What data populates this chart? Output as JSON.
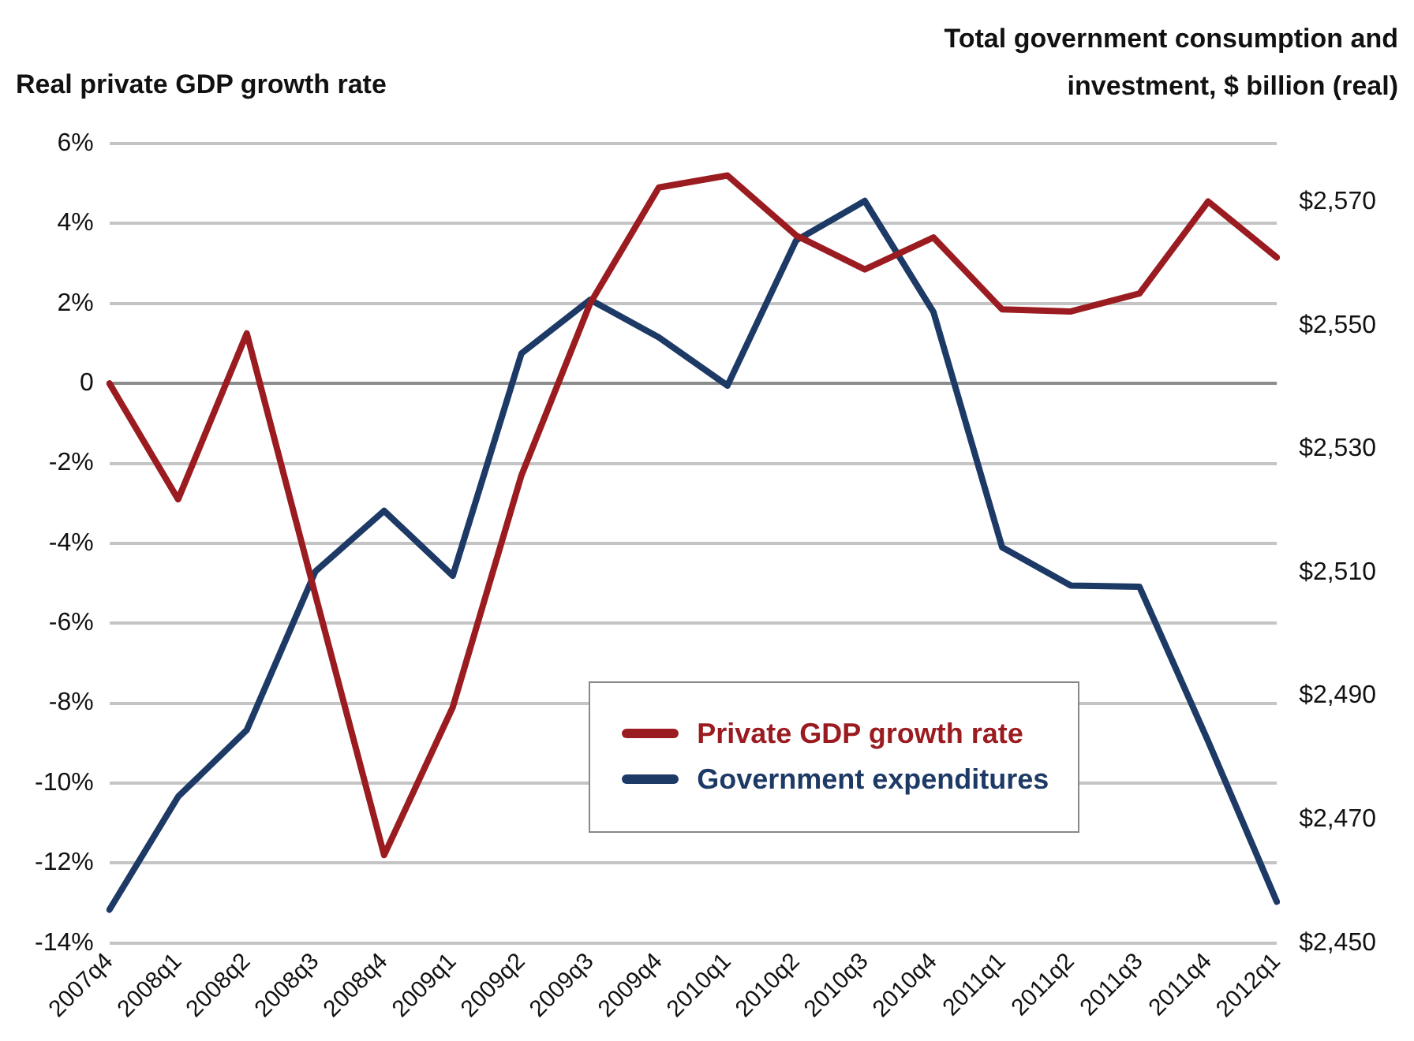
{
  "chart_data": {
    "type": "line",
    "ylabel": "Real private GDP growth rate",
    "y2label": "Total government consumption and investment, $ billion (real)",
    "categories": [
      "2007q4",
      "2008q1",
      "2008q2",
      "2008q3",
      "2008q4",
      "2009q1",
      "2009q2",
      "2009q3",
      "2009q4",
      "2010q1",
      "2010q2",
      "2010q3",
      "2010q4",
      "2011q1",
      "2011q2",
      "2011q3",
      "2011q4",
      "2012q1"
    ],
    "series": [
      {
        "name": "Private GDP growth rate",
        "color": "#9b1c20",
        "values": [
          0,
          -2.9,
          1.25,
          -5.3,
          -11.8,
          -8.1,
          -2.3,
          2.0,
          4.9,
          5.2,
          3.7,
          2.85,
          3.65,
          1.85,
          1.8,
          2.25,
          4.55,
          3.15
        ]
      },
      {
        "name": "Government expenditures",
        "color": "#1d3a66",
        "axis": "y2",
        "values": [
          2455.4,
          2473.7,
          2484.5,
          2510.2,
          2520.0,
          2509.5,
          2545.5,
          2554.2,
          2548.1,
          2540.3,
          2563.8,
          2570.2,
          2552.2,
          2514.1,
          2507.9,
          2507.7,
          2482.7,
          2456.7
        ]
      }
    ],
    "ylim": [
      -14,
      6
    ],
    "yticks": [
      {
        "value": 6,
        "label": "6%"
      },
      {
        "value": 4,
        "label": "4%"
      },
      {
        "value": 2,
        "label": "2%"
      },
      0,
      {
        "value": -2,
        "label": "-2%"
      },
      {
        "value": -4,
        "label": "-4%"
      },
      {
        "value": -6,
        "label": "-6%"
      },
      {
        "value": -8,
        "label": "-8%"
      },
      {
        "value": -10,
        "label": "-10%"
      },
      {
        "value": -12,
        "label": "-12%"
      },
      {
        "value": -14,
        "label": "-14%"
      }
    ],
    "y2lim": [
      2450,
      2579.5
    ],
    "y2ticks": [
      {
        "value": 2450,
        "label": "$2,450"
      },
      {
        "value": 2470,
        "label": "$2,470"
      },
      {
        "value": 2490,
        "label": "$2,490"
      },
      {
        "value": 2510,
        "label": "$2,510"
      },
      {
        "value": 2530,
        "label": "$2,530"
      },
      {
        "value": 2550,
        "label": "$2,550"
      },
      {
        "value": 2570,
        "label": "$2,570"
      }
    ],
    "grid": "y",
    "legend": "bottom",
    "marker": "none",
    "line_style": "solid"
  }
}
